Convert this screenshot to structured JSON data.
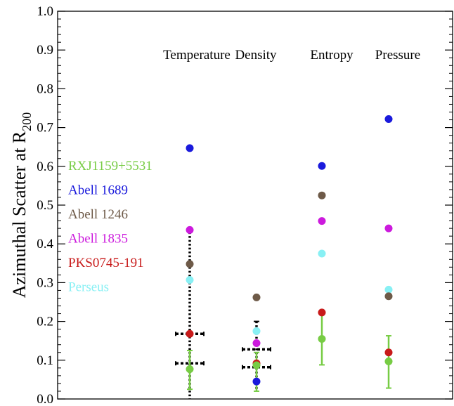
{
  "chart_data": {
    "type": "scatter",
    "ylabel": "Azimuthal Scatter at R",
    "ylabel_sub": "200",
    "ylim": [
      0.0,
      1.0
    ],
    "yticks": [
      "0.0",
      "0.1",
      "0.2",
      "0.3",
      "0.4",
      "0.5",
      "0.6",
      "0.7",
      "0.8",
      "0.9",
      "1.0"
    ],
    "categories": [
      "Temperature",
      "Density",
      "Entropy",
      "Pressure"
    ],
    "legend_placement": "left",
    "series": [
      {
        "name": "RXJ1159+5531",
        "color": "#77cc44",
        "values": [
          0.077,
          0.087,
          0.155,
          0.097
        ],
        "errors": [
          [
            0.025,
            0.125
          ],
          [
            0.02,
            0.12
          ],
          [
            0.088,
            0.22
          ],
          [
            0.028,
            0.163
          ]
        ]
      },
      {
        "name": "Abell 1689",
        "color": "#1a1adc",
        "values": [
          0.647,
          0.045,
          0.601,
          0.722
        ]
      },
      {
        "name": "Abell 1246",
        "color": "#6e5a48",
        "values": [
          0.348,
          0.262,
          0.525,
          0.265
        ]
      },
      {
        "name": "Abell 1835",
        "color": "#cc1add",
        "values": [
          0.436,
          0.144,
          0.459,
          0.44
        ]
      },
      {
        "name": "PKS0745-191",
        "color": "#c81a1a",
        "values": [
          0.168,
          0.092,
          0.223,
          0.12
        ]
      },
      {
        "name": "Perseus",
        "color": "#88f0f4",
        "values": [
          0.307,
          0.175,
          0.375,
          0.282
        ]
      }
    ],
    "simulation_bands": [
      {
        "category": "Temperature",
        "center": 0.168,
        "low": 0.0,
        "high": 0.44,
        "cap_width": "wide"
      },
      {
        "category": "Temperature",
        "center": 0.092,
        "low": 0.0,
        "high": 0.0,
        "cap_width": "wide"
      },
      {
        "category": "Density",
        "center": 0.128,
        "low": 0.02,
        "high": 0.2,
        "cap_width": "wide"
      },
      {
        "category": "Density",
        "center": 0.082,
        "low": 0.0,
        "high": 0.0,
        "cap_width": "wide"
      }
    ]
  }
}
